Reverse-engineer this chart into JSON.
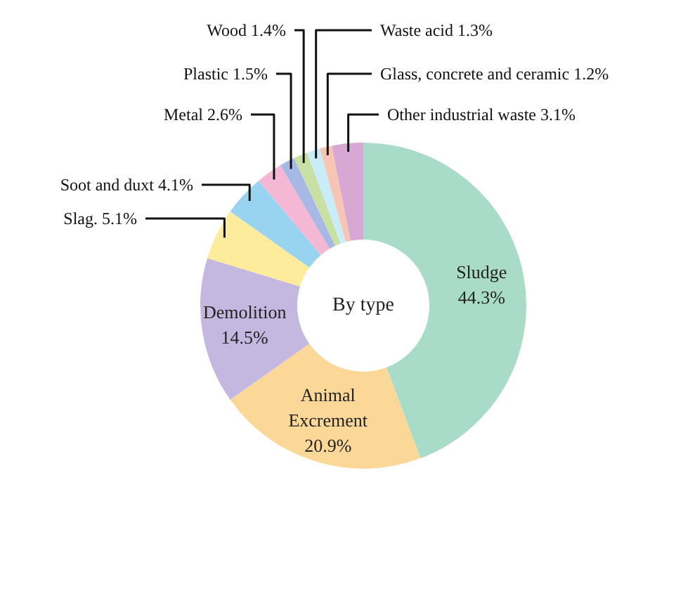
{
  "chart_data": {
    "type": "donut",
    "categories": [
      "Sludge",
      "Animal Excrement",
      "Demolition",
      "Slag.",
      "Soot and duxt",
      "Metal",
      "Plastic",
      "Wood",
      "Waste acid",
      "Glass, concrete and ceramic",
      "Other industrial waste"
    ],
    "values": [
      44.3,
      20.9,
      14.5,
      5.1,
      4.1,
      2.6,
      1.5,
      1.4,
      1.3,
      1.2,
      3.1
    ],
    "value_labels": [
      "44.3%",
      "20.9%",
      "14.5%",
      "5.1%",
      "4.1%",
      "2.6%",
      "1.5%",
      "1.4%",
      "1.3%",
      "1.2%",
      "3.1%"
    ],
    "colors": [
      "#a8dcc8",
      "#fcd898",
      "#c4b8e0",
      "#fcec9c",
      "#98d4f0",
      "#f4b8d4",
      "#a8b8e4",
      "#c8e0a4",
      "#c8ecf8",
      "#f8c4b4",
      "#d8a8d4"
    ],
    "annotations": [
      "By type"
    ]
  }
}
